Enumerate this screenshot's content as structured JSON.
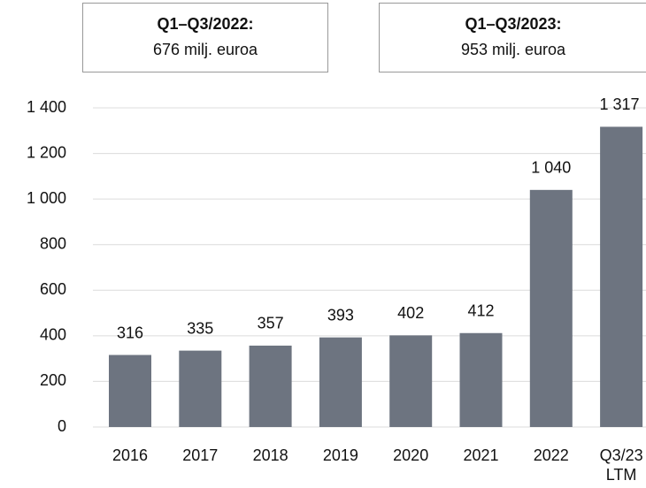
{
  "chart_data": {
    "type": "bar",
    "annotations": [
      {
        "title": "Q1–Q3/2022:",
        "text": "676 milj. euroa"
      },
      {
        "title": "Q1–Q3/2023:",
        "text": "953 milj. euroa"
      }
    ],
    "categories": [
      "2016",
      "2017",
      "2018",
      "2019",
      "2020",
      "2021",
      "2022",
      "Q3/23 LTM"
    ],
    "values": [
      316,
      335,
      357,
      393,
      402,
      412,
      1040,
      1317
    ],
    "value_labels": [
      "316",
      "335",
      "357",
      "393",
      "402",
      "412",
      "1 040",
      "1 317"
    ],
    "color": "#6d7480",
    "ylim": [
      0,
      1400
    ],
    "yticks": [
      0,
      200,
      400,
      600,
      800,
      {
        "value": 1000,
        "label": "1 000"
      },
      {
        "value": 1200,
        "label": "1 200"
      },
      {
        "value": 1400,
        "label": "1 400"
      }
    ],
    "grid": true
  }
}
